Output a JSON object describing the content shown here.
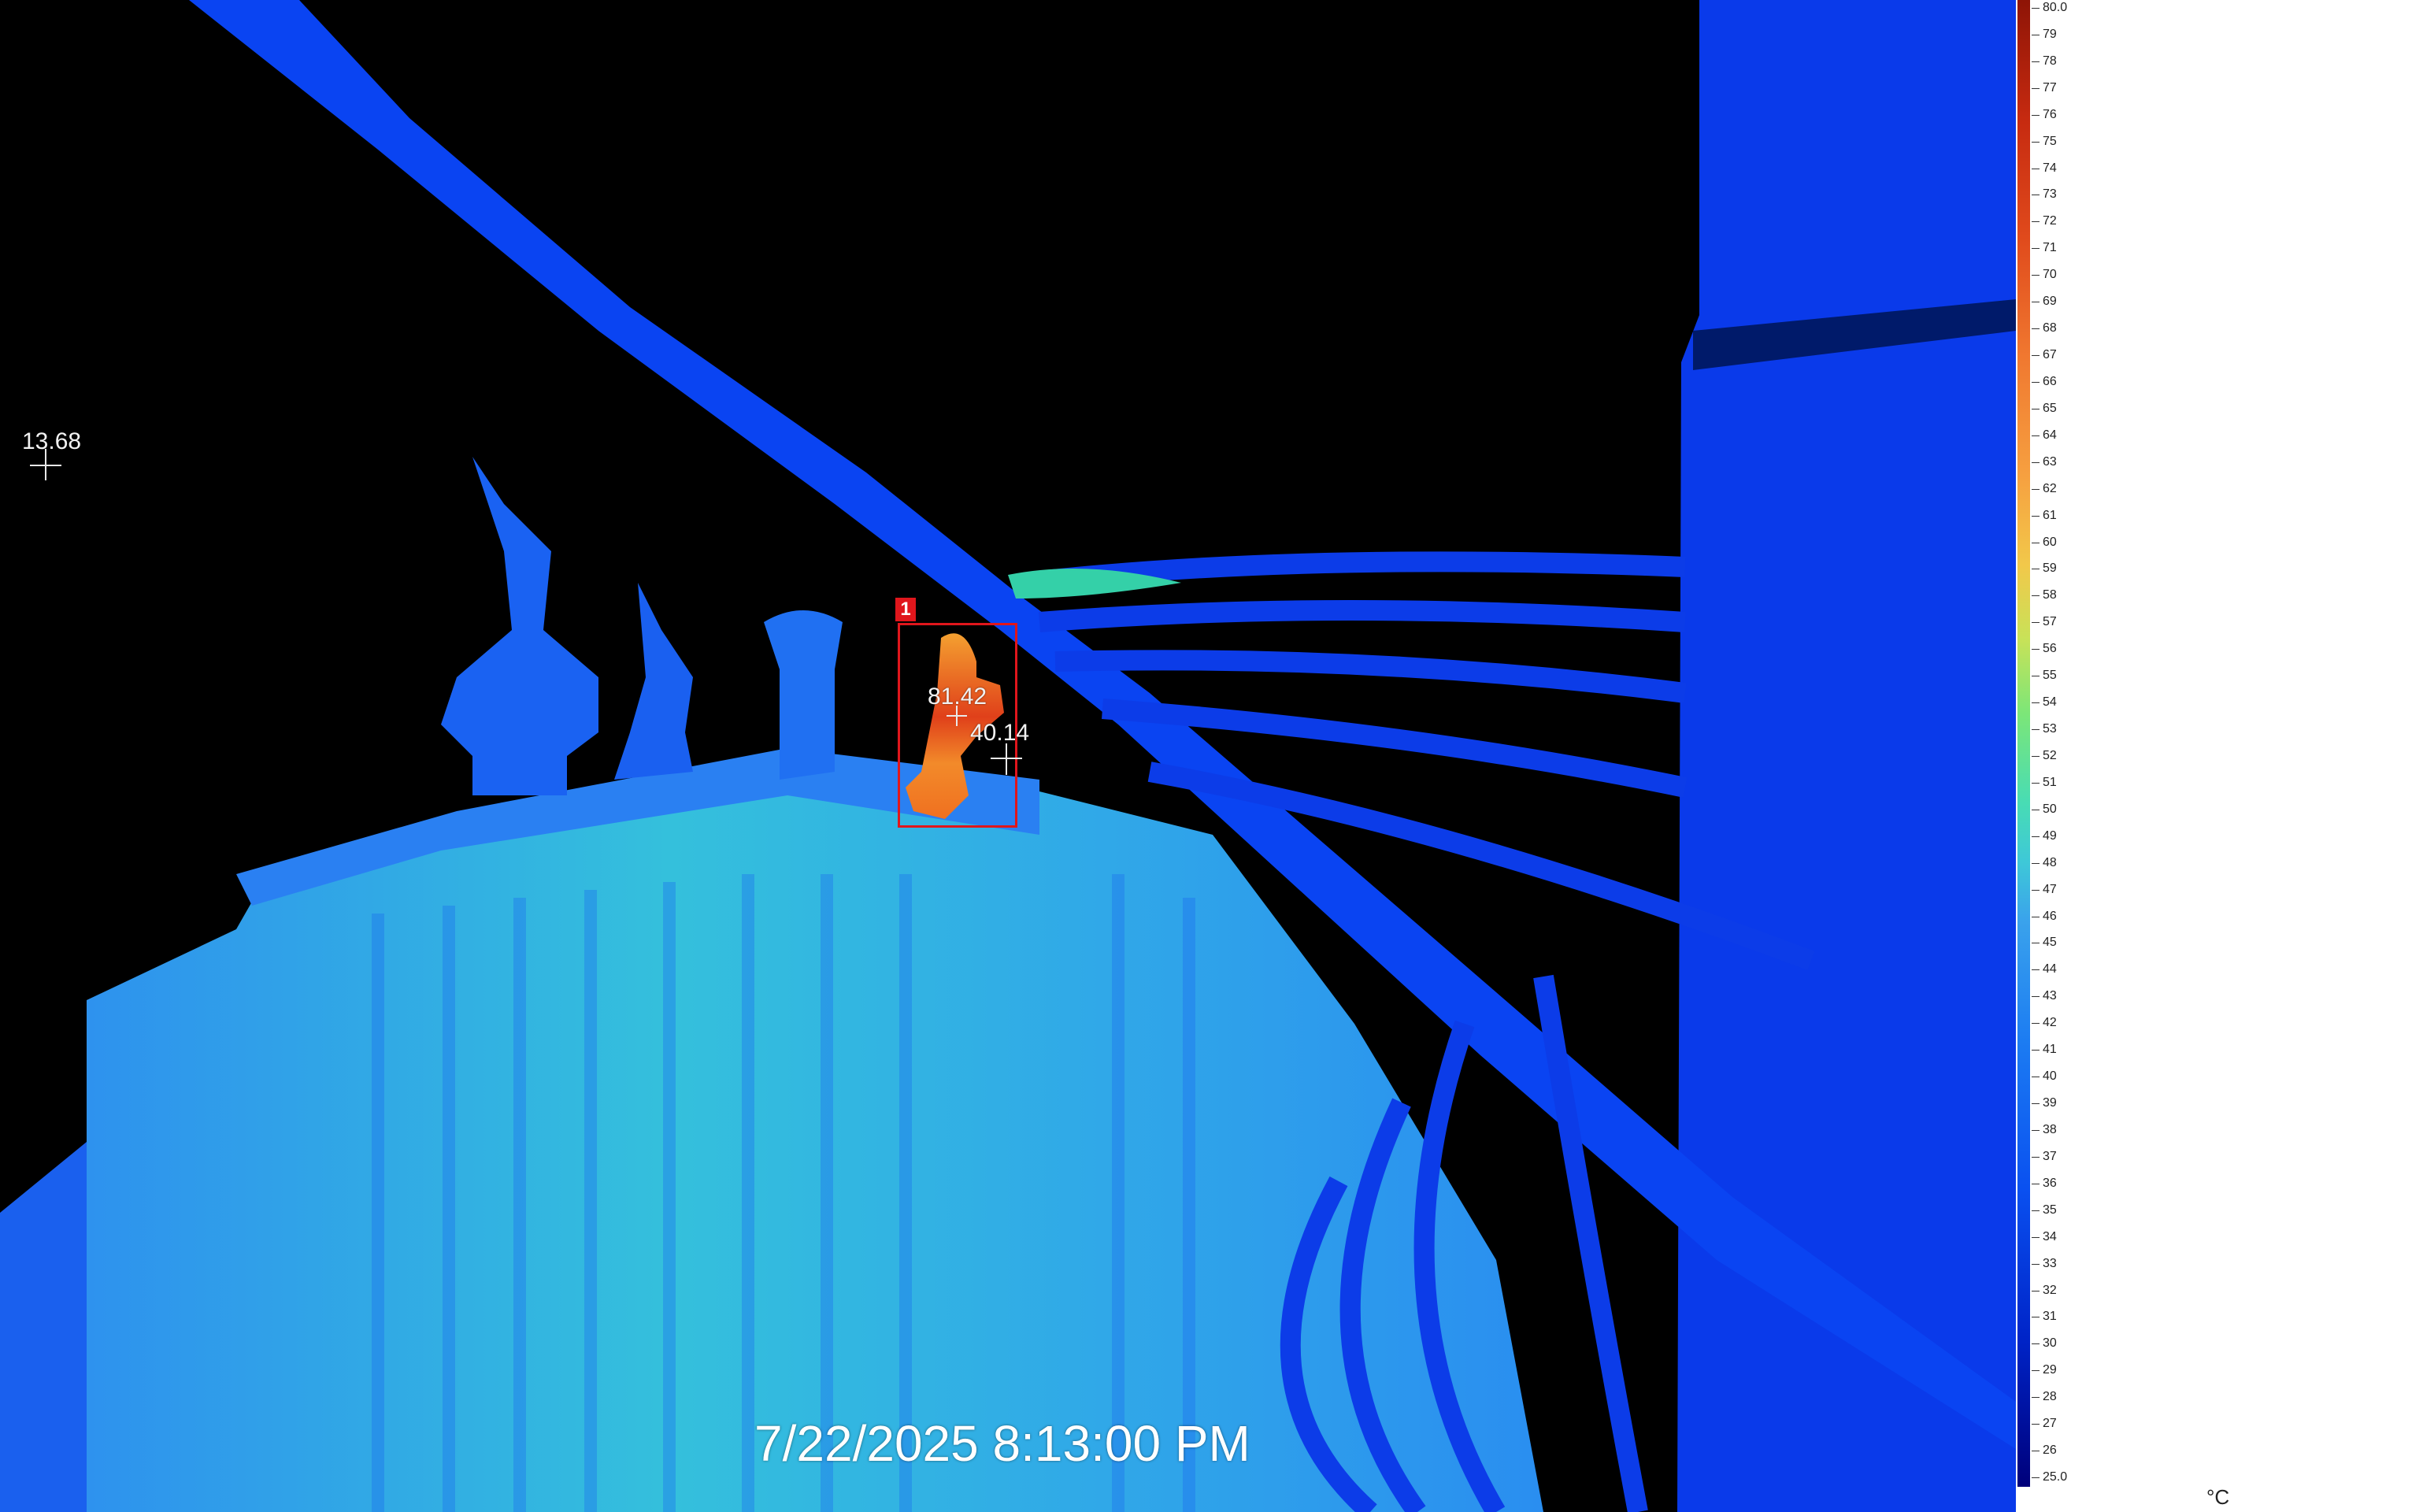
{
  "spots": [
    {
      "id": "spot-left",
      "label": "13.68"
    },
    {
      "id": "spot-hot",
      "label": "81.42"
    },
    {
      "id": "spot-mid",
      "label": "40.14"
    }
  ],
  "roi": {
    "label": "1"
  },
  "timestamp": "7/22/2025 8:13:00 PM",
  "scale": {
    "min_label": "25.0",
    "max_label": "80.0",
    "tick_labels": [
      "79",
      "78",
      "77",
      "76",
      "75",
      "74",
      "73",
      "72",
      "71",
      "70",
      "69",
      "68",
      "67",
      "66",
      "65",
      "64",
      "63",
      "62",
      "61",
      "60",
      "59",
      "58",
      "57",
      "56",
      "55",
      "54",
      "53",
      "52",
      "51",
      "50",
      "49",
      "48",
      "47",
      "46",
      "45",
      "44",
      "43",
      "42",
      "41",
      "40",
      "39",
      "38",
      "37",
      "36",
      "35",
      "34",
      "33",
      "32",
      "31",
      "30",
      "29",
      "28",
      "27",
      "26"
    ],
    "unit": "°C"
  },
  "colors": {
    "background": "#000000",
    "roi_red": "#e0161c",
    "cold_blue": "#0a3cf0",
    "body_cyan": "#2ea8e8",
    "hot_orange": "#f07830"
  }
}
